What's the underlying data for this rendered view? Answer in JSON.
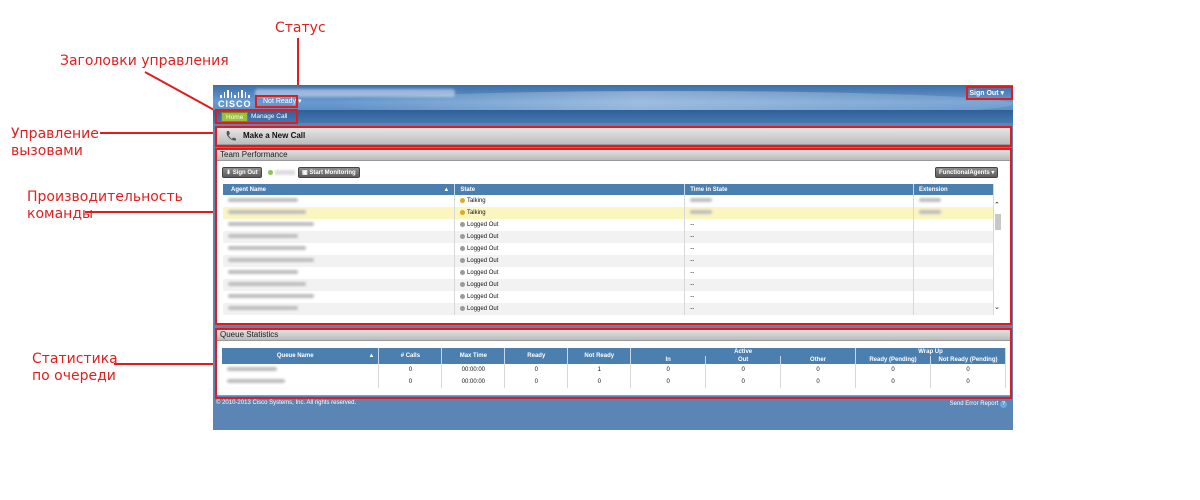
{
  "callouts": {
    "status": "Статус",
    "control_headers": "Заголовки управления",
    "call_control": "Управление\nвызовами",
    "team_performance": "Производительность\nкоманды",
    "queue_statistics": "Статистика\nпо очереди"
  },
  "header": {
    "logo_text": "CISCO",
    "status_label": "Not Ready",
    "signout_label": "Sign Out"
  },
  "nav": {
    "tabs": [
      {
        "label": "Home"
      },
      {
        "label": "Manage Call"
      }
    ]
  },
  "call_bar": {
    "label": "Make a New Call"
  },
  "team_performance": {
    "title": "Team Performance",
    "sign_out_button": "Sign Out",
    "start_monitoring_button": "Start Monitoring",
    "team_selector": "FunctionalAgents",
    "columns": [
      "Agent Name",
      "State",
      "Time in State",
      "Extension"
    ],
    "rows": [
      {
        "state": "Talking",
        "time": "",
        "ext": "",
        "highlight": false,
        "status": "talking"
      },
      {
        "state": "Talking",
        "time": "",
        "ext": "",
        "highlight": true,
        "status": "talking"
      },
      {
        "state": "Logged Out",
        "time": "--",
        "ext": "",
        "highlight": false,
        "status": "out"
      },
      {
        "state": "Logged Out",
        "time": "--",
        "ext": "",
        "highlight": false,
        "status": "out"
      },
      {
        "state": "Logged Out",
        "time": "--",
        "ext": "",
        "highlight": false,
        "status": "out"
      },
      {
        "state": "Logged Out",
        "time": "--",
        "ext": "",
        "highlight": false,
        "status": "out"
      },
      {
        "state": "Logged Out",
        "time": "--",
        "ext": "",
        "highlight": false,
        "status": "out"
      },
      {
        "state": "Logged Out",
        "time": "--",
        "ext": "",
        "highlight": false,
        "status": "out"
      },
      {
        "state": "Logged Out",
        "time": "--",
        "ext": "",
        "highlight": false,
        "status": "out"
      },
      {
        "state": "Logged Out",
        "time": "--",
        "ext": "",
        "highlight": false,
        "status": "out"
      }
    ]
  },
  "queue_statistics": {
    "title": "Queue Statistics",
    "columns": [
      "Queue Name",
      "# Calls",
      "Max Time",
      "Ready",
      "Not Ready"
    ],
    "active_group": "Active",
    "active_columns": [
      "In",
      "Out",
      "Other"
    ],
    "wrapup_group": "Wrap Up",
    "wrapup_columns": [
      "Ready (Pending)",
      "Not Ready (Pending)"
    ],
    "rows": [
      {
        "calls": "0",
        "max_time": "00:00:00",
        "ready": "0",
        "not_ready": "1",
        "in": "0",
        "out": "0",
        "other": "0",
        "wr_ready": "0",
        "wr_not_ready": "0"
      },
      {
        "calls": "0",
        "max_time": "00:00:00",
        "ready": "0",
        "not_ready": "0",
        "in": "0",
        "out": "0",
        "other": "0",
        "wr_ready": "0",
        "wr_not_ready": "0"
      }
    ]
  },
  "footer": {
    "copyright": "© 2010-2013 Cisco Systems, Inc. All rights reserved.",
    "error_report": "Send Error Report"
  },
  "colors": {
    "accent": "#e21c1c",
    "header_blue": "#4a7fb0",
    "home_tab": "#9cc03d"
  }
}
